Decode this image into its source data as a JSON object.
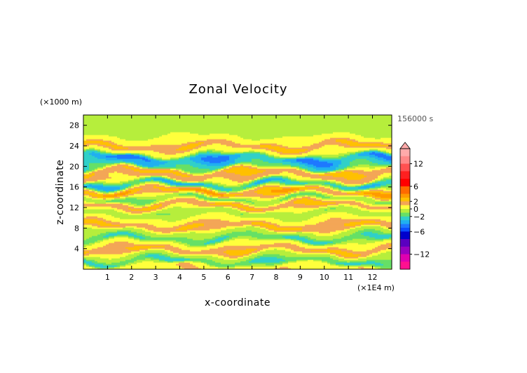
{
  "chart_data": {
    "type": "heatmap",
    "title": "Zonal Velocity",
    "xlabel": "x-coordinate",
    "ylabel": "z-coordinate",
    "x_unit": "(×1E4 m)",
    "y_unit": "(×1000 m)",
    "time_label": "156000 s",
    "xlim": [
      0,
      12.8
    ],
    "ylim": [
      0,
      30
    ],
    "x_ticks": [
      1,
      2,
      3,
      4,
      5,
      6,
      7,
      8,
      9,
      10,
      11,
      12
    ],
    "y_ticks": [
      4,
      8,
      12,
      16,
      20,
      24,
      28
    ],
    "grid": false,
    "legend_position": "right",
    "colorbar": {
      "tick_labels": [
        "12",
        "6",
        "2",
        "0",
        "−2",
        "−6",
        "−12"
      ],
      "levels": [
        {
          "min": 14,
          "max": 16,
          "color": "#ffaaaa"
        },
        {
          "min": 12,
          "max": 14,
          "color": "#ff8888"
        },
        {
          "min": 10,
          "max": 12,
          "color": "#ff5050"
        },
        {
          "min": 8,
          "max": 10,
          "color": "#ff2020"
        },
        {
          "min": 6,
          "max": 8,
          "color": "#ff0000"
        },
        {
          "min": 4,
          "max": 6,
          "color": "#ff6a00"
        },
        {
          "min": 3,
          "max": 4,
          "color": "#ff9a00"
        },
        {
          "min": 2,
          "max": 3,
          "color": "#ffc000"
        },
        {
          "min": 1,
          "max": 2,
          "color": "#f3a657"
        },
        {
          "min": 0,
          "max": 1,
          "color": "#ffff3c"
        },
        {
          "min": -1,
          "max": 0,
          "color": "#b6ee3c"
        },
        {
          "min": -2,
          "max": -1,
          "color": "#66e066"
        },
        {
          "min": -3,
          "max": -2,
          "color": "#30d0c8"
        },
        {
          "min": -4,
          "max": -3,
          "color": "#20b0f0"
        },
        {
          "min": -5,
          "max": -4,
          "color": "#1e78ff"
        },
        {
          "min": -6,
          "max": -5,
          "color": "#0a4cff"
        },
        {
          "min": -8,
          "max": -6,
          "color": "#0000cc"
        },
        {
          "min": -10,
          "max": -8,
          "color": "#5a00c0"
        },
        {
          "min": -12,
          "max": -10,
          "color": "#9a00c0"
        },
        {
          "min": -14,
          "max": -12,
          "color": "#e000b0"
        },
        {
          "min": -16,
          "max": -14,
          "color": "#ff1090"
        }
      ]
    },
    "layers": [
      {
        "z": 0.6,
        "value": 1.0
      },
      {
        "z": 1.6,
        "value": -2.5
      },
      {
        "z": 2.6,
        "value": -0.5
      },
      {
        "z": 3.8,
        "value": 2.5
      },
      {
        "z": 5.0,
        "value": 0.5
      },
      {
        "z": 6.0,
        "value": -2.5
      },
      {
        "z": 7.2,
        "value": -0.5
      },
      {
        "z": 8.4,
        "value": 2.5
      },
      {
        "z": 9.8,
        "value": 0.5
      },
      {
        "z": 11.0,
        "value": -1.0
      },
      {
        "z": 12.6,
        "value": 2.5
      },
      {
        "z": 13.8,
        "value": -1.5
      },
      {
        "z": 15.2,
        "value": 3.5
      },
      {
        "z": 16.6,
        "value": -3.5
      },
      {
        "z": 17.8,
        "value": 1.5
      },
      {
        "z": 19.0,
        "value": 2.5
      },
      {
        "z": 20.2,
        "value": -3.0
      },
      {
        "z": 21.6,
        "value": -4.5
      },
      {
        "z": 22.8,
        "value": 0.5
      },
      {
        "z": 24.0,
        "value": 2.5
      },
      {
        "z": 25.2,
        "value": 0.3
      },
      {
        "z": 27.0,
        "value": -0.5
      },
      {
        "z": 29.5,
        "value": -0.5
      }
    ]
  }
}
